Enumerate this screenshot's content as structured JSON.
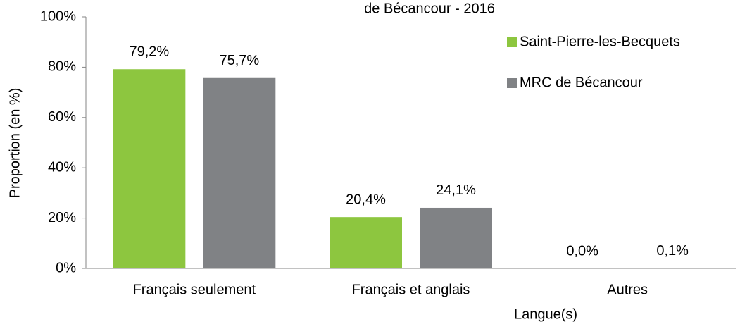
{
  "chart_data": {
    "type": "bar",
    "title": "de Bécancour - 2016",
    "x_label": "Langue(s)",
    "y_label": "Proportion (en %)",
    "categories": [
      "Français seulement",
      "Français et anglais",
      "Autres"
    ],
    "series": [
      {
        "name": "Saint-Pierre-les-Becquets",
        "color": "#8dc63f",
        "values": [
          79.2,
          20.4,
          0.0
        ],
        "value_labels": [
          "79,2%",
          "20,4%",
          "0,0%"
        ]
      },
      {
        "name": "MRC de Bécancour",
        "color": "#808285",
        "values": [
          75.7,
          24.1,
          0.1
        ],
        "value_labels": [
          "75,7%",
          "24,1%",
          "0,1%"
        ]
      }
    ],
    "ylim": [
      0,
      100
    ],
    "yticks": [
      {
        "value": 0,
        "label": "0%"
      },
      {
        "value": 20,
        "label": "20%"
      },
      {
        "value": 40,
        "label": "40%"
      },
      {
        "value": 60,
        "label": "60%"
      },
      {
        "value": 80,
        "label": "80%"
      },
      {
        "value": 100,
        "label": "100%"
      }
    ],
    "grid": false,
    "legend": "upper right"
  }
}
